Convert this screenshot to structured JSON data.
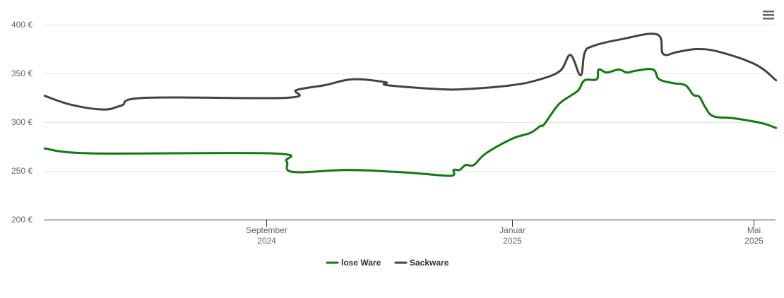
{
  "chart_data": {
    "type": "line",
    "title": "",
    "xlabel": "",
    "ylabel": "",
    "ylim": [
      200,
      400
    ],
    "xlim": [
      "2024-05-14",
      "2025-05-12"
    ],
    "grid": true,
    "legend_position": "bottom-center",
    "y_ticks": [
      {
        "value": 200,
        "label": "200 €"
      },
      {
        "value": 250,
        "label": "250 €"
      },
      {
        "value": 300,
        "label": "300 €"
      },
      {
        "value": 350,
        "label": "350 €"
      },
      {
        "value": 400,
        "label": "400 €"
      }
    ],
    "x_ticks": [
      {
        "date": "2024-09-01",
        "month": "September",
        "year": "2024"
      },
      {
        "date": "2025-01-01",
        "month": "Januar",
        "year": "2025"
      },
      {
        "date": "2025-05-01",
        "month": "Mai",
        "year": "2025"
      }
    ],
    "series": [
      {
        "name": "lose Ware",
        "color": "#0f7b0f",
        "points": [
          [
            "2024-05-14",
            273
          ],
          [
            "2024-06-07",
            268
          ],
          [
            "2024-09-04",
            268
          ],
          [
            "2024-09-11",
            260
          ],
          [
            "2024-09-14",
            249
          ],
          [
            "2024-10-11",
            251
          ],
          [
            "2024-11-04",
            249
          ],
          [
            "2024-11-18",
            247
          ],
          [
            "2024-12-02",
            245
          ],
          [
            "2024-12-03",
            251
          ],
          [
            "2024-12-06",
            251
          ],
          [
            "2024-12-09",
            256
          ],
          [
            "2024-12-13",
            256
          ],
          [
            "2024-12-19",
            268
          ],
          [
            "2025-01-01",
            283
          ],
          [
            "2025-01-10",
            289
          ],
          [
            "2025-01-15",
            296
          ],
          [
            "2025-01-17",
            298
          ],
          [
            "2025-01-24",
            318
          ],
          [
            "2025-01-30",
            327
          ],
          [
            "2025-02-03",
            333
          ],
          [
            "2025-02-06",
            343
          ],
          [
            "2025-02-12",
            344
          ],
          [
            "2025-02-13",
            354
          ],
          [
            "2025-02-17",
            351
          ],
          [
            "2025-02-23",
            354
          ],
          [
            "2025-02-27",
            351
          ],
          [
            "2025-03-04",
            353
          ],
          [
            "2025-03-12",
            354
          ],
          [
            "2025-03-15",
            344
          ],
          [
            "2025-03-22",
            340
          ],
          [
            "2025-03-28",
            338
          ],
          [
            "2025-04-01",
            328
          ],
          [
            "2025-04-04",
            326
          ],
          [
            "2025-04-07",
            315
          ],
          [
            "2025-04-11",
            306
          ],
          [
            "2025-04-21",
            304
          ],
          [
            "2025-05-05",
            299
          ],
          [
            "2025-05-12",
            294
          ]
        ]
      },
      {
        "name": "Sackware",
        "color": "#434343",
        "points": [
          [
            "2024-05-14",
            327
          ],
          [
            "2024-05-27",
            318
          ],
          [
            "2024-06-12",
            313
          ],
          [
            "2024-06-21",
            317
          ],
          [
            "2024-07-03",
            325
          ],
          [
            "2024-09-11",
            325
          ],
          [
            "2024-09-16",
            333
          ],
          [
            "2024-09-30",
            338
          ],
          [
            "2024-10-14",
            344
          ],
          [
            "2024-10-30",
            341
          ],
          [
            "2024-10-31",
            338
          ],
          [
            "2024-11-25",
            334
          ],
          [
            "2024-12-09",
            334
          ],
          [
            "2025-01-01",
            338
          ],
          [
            "2025-01-15",
            344
          ],
          [
            "2025-01-25",
            353
          ],
          [
            "2025-01-30",
            369
          ],
          [
            "2025-02-04",
            348
          ],
          [
            "2025-02-06",
            371
          ],
          [
            "2025-02-10",
            378
          ],
          [
            "2025-02-24",
            385
          ],
          [
            "2025-03-14",
            390
          ],
          [
            "2025-03-17",
            370
          ],
          [
            "2025-03-24",
            372
          ],
          [
            "2025-04-03",
            375
          ],
          [
            "2025-04-14",
            372
          ],
          [
            "2025-05-02",
            359
          ],
          [
            "2025-05-12",
            343
          ]
        ]
      }
    ]
  }
}
